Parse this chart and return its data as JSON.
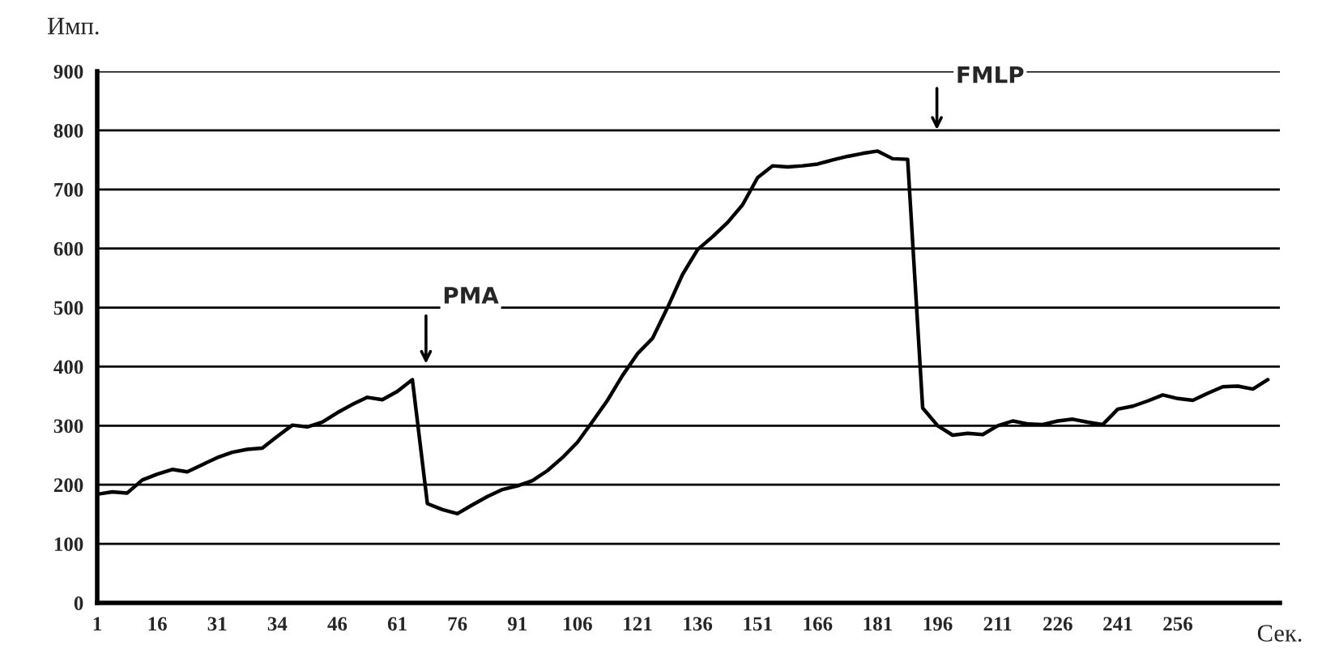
{
  "chart_data": {
    "type": "line",
    "xlabel": "Сек.",
    "ylabel": "Имп.",
    "categories": [
      "1",
      null,
      null,
      null,
      "16",
      null,
      null,
      null,
      "31",
      null,
      null,
      null,
      "34",
      null,
      null,
      null,
      "46",
      null,
      null,
      null,
      "61",
      null,
      null,
      null,
      "76",
      null,
      null,
      null,
      "91",
      null,
      null,
      null,
      "106",
      null,
      null,
      null,
      "121",
      null,
      null,
      null,
      "136",
      null,
      null,
      null,
      "151",
      null,
      null,
      null,
      "166",
      null,
      null,
      null,
      "181",
      null,
      null,
      null,
      "196",
      null,
      null,
      null,
      "211",
      null,
      null,
      null,
      "226",
      null,
      null,
      null,
      "241",
      null,
      null,
      null,
      "256",
      null,
      null,
      null,
      null,
      null,
      null
    ],
    "series": [
      {
        "color": "#000000",
        "values": [
          184,
          188,
          186,
          208,
          218,
          226,
          222,
          234,
          246,
          255,
          260,
          262,
          282,
          301,
          298,
          306,
          322,
          336,
          348,
          344,
          358,
          378,
          168,
          158,
          151,
          166,
          180,
          192,
          198,
          207,
          224,
          246,
          272,
          307,
          343,
          385,
          422,
          448,
          500,
          556,
          598,
          620,
          644,
          674,
          720,
          740,
          738,
          740,
          743,
          750,
          756,
          761,
          765,
          752,
          751,
          330,
          300,
          284,
          287,
          285,
          300,
          308,
          303,
          302,
          308,
          311,
          306,
          302,
          328,
          333,
          342,
          352,
          346,
          343,
          355,
          366,
          367,
          362,
          378
        ]
      }
    ],
    "ylim": [
      0,
      900
    ],
    "yticks": [
      0,
      100,
      200,
      300,
      400,
      500,
      600,
      700,
      800,
      900
    ],
    "grid": "y",
    "marker": "none",
    "line_style": "solid",
    "annotations": [
      "PMA",
      "FMLP"
    ]
  }
}
